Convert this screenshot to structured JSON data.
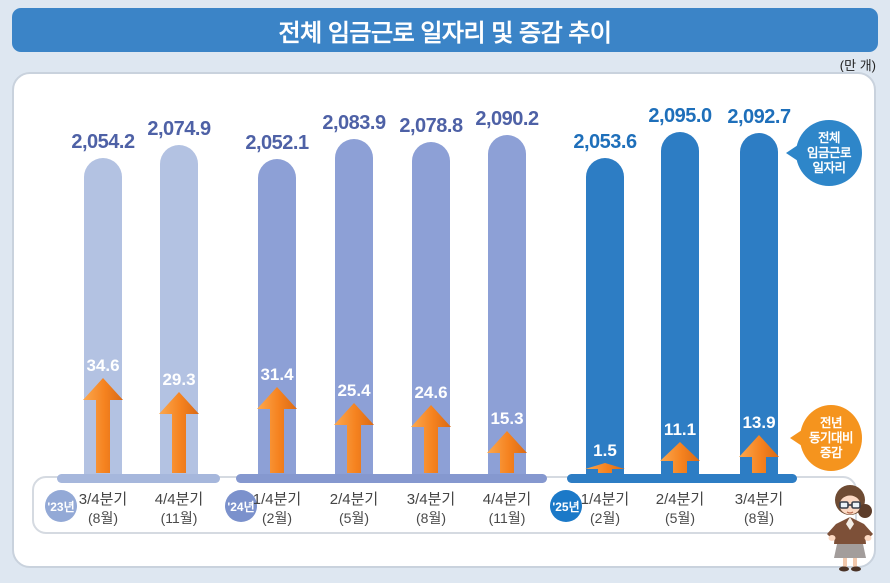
{
  "title": "전체 임금근로 일자리 및 증감 추이",
  "unit_label": "(만 개)",
  "bubbles": {
    "jobs_lines": [
      "전체",
      "임금근로",
      "일자리"
    ],
    "change_lines": [
      "전년",
      "동기대비",
      "증감"
    ]
  },
  "colors": {
    "background": "#dee7f1",
    "title_bar": "#3b84c7",
    "jobs_bubble": "#2e86c9",
    "change_bubble": "#f5941e",
    "arrow_orange": "#f5821f"
  },
  "chart_data": {
    "type": "bar",
    "title": "전체 임금근로 일자리 및 증감 추이",
    "unit": "만 개",
    "legend_position": "right-bubbles",
    "grid": false,
    "series": [
      {
        "name": "전체 임금근로 일자리",
        "values": [
          2054.2,
          2074.9,
          2052.1,
          2083.9,
          2078.8,
          2090.2,
          2053.6,
          2095.0,
          2092.7
        ]
      },
      {
        "name": "전년 동기대비 증감",
        "values": [
          34.6,
          29.3,
          31.4,
          25.4,
          24.6,
          15.3,
          1.5,
          11.1,
          13.9
        ]
      }
    ],
    "categories": [
      {
        "year": "'23년",
        "quarter": "3/4분기",
        "month": "(8월)"
      },
      {
        "year": "'23년",
        "quarter": "4/4분기",
        "month": "(11월)"
      },
      {
        "year": "'24년",
        "quarter": "1/4분기",
        "month": "(2월)"
      },
      {
        "year": "'24년",
        "quarter": "2/4분기",
        "month": "(5월)"
      },
      {
        "year": "'24년",
        "quarter": "3/4분기",
        "month": "(8월)"
      },
      {
        "year": "'24년",
        "quarter": "4/4분기",
        "month": "(11월)"
      },
      {
        "year": "'25년",
        "quarter": "1/4분기",
        "month": "(2월)"
      },
      {
        "year": "'25년",
        "quarter": "2/4분기",
        "month": "(5월)"
      },
      {
        "year": "'25년",
        "quarter": "3/4분기",
        "month": "(8월)"
      }
    ],
    "groups": [
      {
        "year": "'23년",
        "start": 0,
        "count": 2,
        "bar_color": "#b3c2e2",
        "pedestal_color": "#a6b7dc",
        "badge_color": "#93a9d6",
        "value_color": "#4e61a6"
      },
      {
        "year": "'24년",
        "start": 2,
        "count": 4,
        "bar_color": "#8da0d6",
        "pedestal_color": "#8598cf",
        "badge_color": "#7b91cc",
        "value_color": "#4e61a6"
      },
      {
        "year": "'25년",
        "start": 6,
        "count": 3,
        "bar_color": "#2d7dc4",
        "pedestal_color": "#2d7dc4",
        "badge_color": "#1b79c8",
        "value_color": "#1e6fba"
      }
    ]
  }
}
